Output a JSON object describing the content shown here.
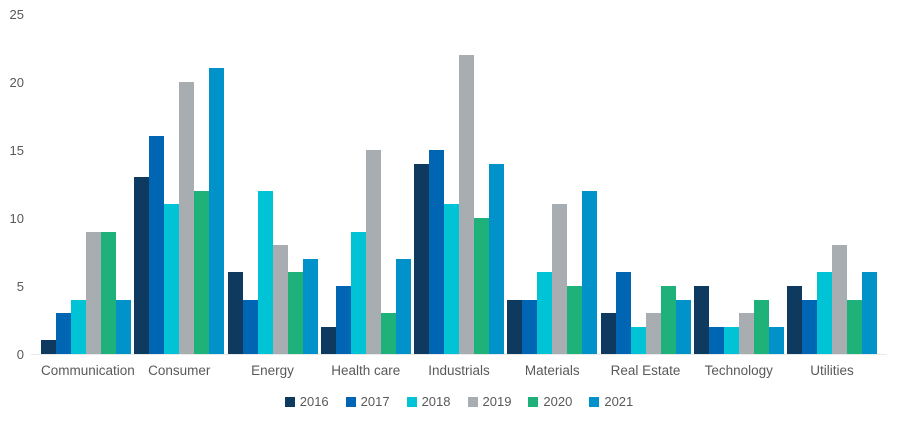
{
  "chart_data": {
    "type": "bar",
    "title": "",
    "xlabel": "",
    "ylabel": "",
    "ylim": [
      0,
      25
    ],
    "yticks": [
      0,
      5,
      10,
      15,
      20,
      25
    ],
    "grid": false,
    "legend_position": "bottom",
    "categories": [
      "Communication",
      "Consumer",
      "Energy",
      "Health care",
      "Industrials",
      "Materials",
      "Real Estate",
      "Technology",
      "Utilities"
    ],
    "series": [
      {
        "name": "2016",
        "color": "#0d3a5e",
        "values": [
          1,
          13,
          6,
          2,
          14,
          4,
          3,
          5,
          5
        ]
      },
      {
        "name": "2017",
        "color": "#0065b3",
        "values": [
          3,
          16,
          4,
          5,
          15,
          4,
          6,
          2,
          4
        ]
      },
      {
        "name": "2018",
        "color": "#00c4d5",
        "values": [
          4,
          11,
          12,
          9,
          11,
          6,
          2,
          2,
          6
        ]
      },
      {
        "name": "2019",
        "color": "#a8adb2",
        "values": [
          9,
          20,
          8,
          15,
          22,
          11,
          3,
          3,
          8
        ]
      },
      {
        "name": "2020",
        "color": "#1eb27a",
        "values": [
          9,
          12,
          6,
          3,
          10,
          5,
          5,
          4,
          4
        ]
      },
      {
        "name": "2021",
        "color": "#0092c9",
        "values": [
          4,
          21,
          7,
          7,
          14,
          12,
          4,
          2,
          6
        ]
      }
    ]
  },
  "colors": {
    "axis_text": "#595959",
    "baseline": "#e7e9ea",
    "background": "#ffffff"
  }
}
